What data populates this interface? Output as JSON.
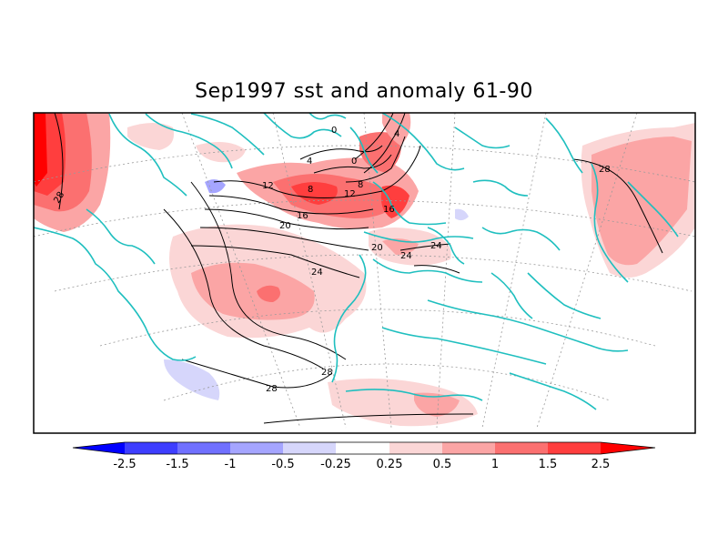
{
  "title": "Sep1997 sst and anomaly 61-90",
  "colors": {
    "coastline": "#1fbfbf",
    "frame": "#000000",
    "contour": "#000000"
  },
  "contour_labels": [
    "28",
    "12",
    "16",
    "20",
    "24",
    "28",
    "28",
    "8",
    "12",
    "16",
    "20",
    "24",
    "24",
    "8",
    "4",
    "0",
    "4",
    "0",
    "28"
  ],
  "colorbar": {
    "ticks": [
      "-2.5",
      "-1.5",
      "-1",
      "-0.5",
      "-0.25",
      "0.25",
      "0.5",
      "1",
      "1.5",
      "2.5"
    ],
    "colors": [
      "#0000ff",
      "#3e3eff",
      "#7070ff",
      "#a5a5ff",
      "#d6d6fb",
      "#ffffff",
      "#fbd6d6",
      "#fba5a5",
      "#fb7070",
      "#ff3e3e",
      "#ff0000"
    ]
  }
}
